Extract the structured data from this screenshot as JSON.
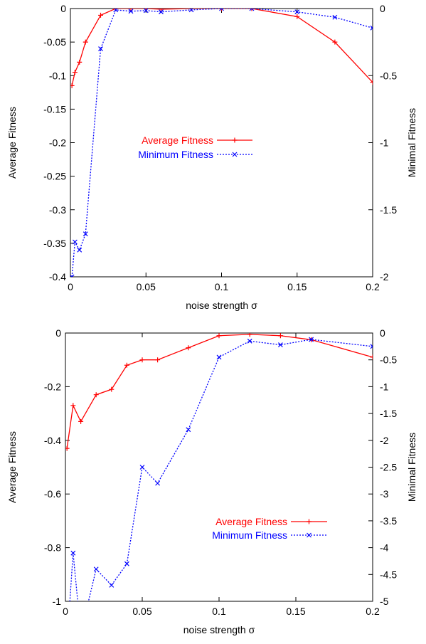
{
  "chart_data": [
    {
      "type": "line",
      "xlabel": "noise strength σ",
      "ylabel_left": "Average Fitness",
      "ylabel_right": "Minimal Fitness",
      "xlim": [
        0,
        0.2
      ],
      "ylim_left": [
        -0.4,
        0
      ],
      "ylim_right": [
        -2,
        0
      ],
      "xticks": [
        "0",
        "0.05",
        "0.1",
        "0.15",
        "0.2"
      ],
      "yticks_left": [
        "0",
        "-0.05",
        "-0.1",
        "-0.15",
        "-0.2",
        "-0.25",
        "-0.3",
        "-0.35",
        "-0.4"
      ],
      "yticks_right": [
        "0",
        "-0.5",
        "-1",
        "-1.5",
        "-2"
      ],
      "grid": false,
      "legend_position": "center-left",
      "series": [
        {
          "name": "Average Fitness",
          "axis": "left",
          "color": "#ff0000",
          "style": "solid",
          "marker": "plus",
          "x": [
            0.001,
            0.003,
            0.006,
            0.01,
            0.02,
            0.03,
            0.04,
            0.05,
            0.06,
            0.08,
            0.1,
            0.12,
            0.15,
            0.175,
            0.2
          ],
          "y": [
            -0.115,
            -0.095,
            -0.08,
            -0.05,
            -0.01,
            0.0,
            0.0,
            0.0,
            -0.001,
            0.0,
            0.0,
            0.0,
            -0.012,
            -0.05,
            -0.11
          ]
        },
        {
          "name": "Minimum Fitness",
          "axis": "right",
          "color": "#0000ff",
          "style": "dotted",
          "marker": "x",
          "x": [
            0.001,
            0.003,
            0.006,
            0.01,
            0.02,
            0.03,
            0.04,
            0.05,
            0.06,
            0.08,
            0.1,
            0.12,
            0.15,
            0.175,
            0.2
          ],
          "y": [
            -2.0,
            -1.74,
            -1.8,
            -1.68,
            -0.3,
            -0.01,
            -0.02,
            -0.015,
            -0.025,
            -0.01,
            0.0,
            0.0,
            -0.025,
            -0.065,
            -0.145
          ]
        }
      ]
    },
    {
      "type": "line",
      "xlabel": "noise strength σ",
      "ylabel_left": "Average Fitness",
      "ylabel_right": "Minimal Fitness",
      "xlim": [
        0,
        0.2
      ],
      "ylim_left": [
        -1,
        0
      ],
      "ylim_right": [
        -5,
        0
      ],
      "xticks": [
        "0",
        "0.05",
        "0.1",
        "0.15",
        "0.2"
      ],
      "yticks_left": [
        "0",
        "-0.2",
        "-0.4",
        "-0.6",
        "-0.8",
        "-1"
      ],
      "yticks_right": [
        "0",
        "-0.5",
        "-1",
        "-1.5",
        "-2",
        "-2.5",
        "-3",
        "-3.5",
        "-4",
        "-4.5",
        "-5"
      ],
      "grid": false,
      "legend_position": "bottom-right",
      "series": [
        {
          "name": "Average Fitness",
          "axis": "left",
          "color": "#ff0000",
          "style": "solid",
          "marker": "plus",
          "x": [
            0.001,
            0.005,
            0.01,
            0.02,
            0.03,
            0.04,
            0.05,
            0.06,
            0.08,
            0.1,
            0.12,
            0.14,
            0.16,
            0.2
          ],
          "y": [
            -0.43,
            -0.27,
            -0.33,
            -0.23,
            -0.21,
            -0.12,
            -0.1,
            -0.1,
            -0.055,
            -0.01,
            -0.005,
            -0.01,
            -0.025,
            -0.09
          ]
        },
        {
          "name": "Minimum Fitness",
          "axis": "right",
          "color": "#0000ff",
          "style": "dotted",
          "marker": "x",
          "x": [
            0.005,
            0.02,
            0.03,
            0.04,
            0.05,
            0.06,
            0.08,
            0.1,
            0.12,
            0.14,
            0.16,
            0.2
          ],
          "y": [
            -4.1,
            -4.4,
            -4.7,
            -4.3,
            -2.5,
            -2.8,
            -1.8,
            -0.45,
            -0.15,
            -0.22,
            -0.12,
            -0.25
          ],
          "clipped_start": [
            [
              0.001,
              -5.8
            ],
            [
              0.005,
              -4.1
            ],
            [
              0.01,
              -5.6
            ]
          ]
        }
      ]
    }
  ]
}
